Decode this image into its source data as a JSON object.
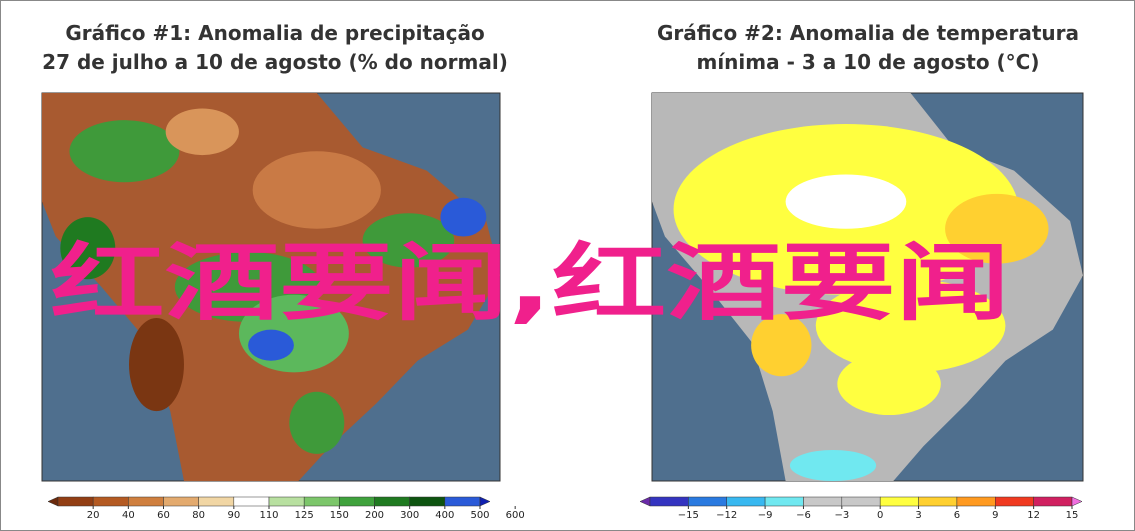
{
  "maps": [
    {
      "title": [
        "Gráfico #1: Anomalia de precipitação",
        "27 de julho a 10 de agosto (% do normal)"
      ],
      "colorbar": {
        "ticks": [
          20,
          40,
          60,
          80,
          90,
          110,
          125,
          150,
          200,
          300,
          400,
          500,
          600
        ],
        "colors": [
          "#6b2a0c",
          "#923e14",
          "#b45a22",
          "#cf7f3e",
          "#e3aa6e",
          "#f1d6a4",
          "#ffffff",
          "#b8e0a0",
          "#7cc66a",
          "#3fa23c",
          "#1f7a20",
          "#0d5410",
          "#2a5ad8",
          "#1020b0"
        ]
      }
    },
    {
      "title": [
        "Gráfico #2: Anomalia de temperatura",
        "mínima - 3 a 10 de agosto (°C)"
      ],
      "colorbar": {
        "ticks": [
          {
            "value": -15,
            "label": "−15"
          },
          {
            "value": -12,
            "label": "−12"
          },
          {
            "value": -9,
            "label": "−9"
          },
          {
            "value": -6,
            "label": "−6"
          },
          {
            "value": -3,
            "label": "−3"
          },
          0,
          3,
          6,
          9,
          12,
          15
        ],
        "colors": [
          "#6a2aa8",
          "#3434c0",
          "#2a7ae0",
          "#38b8f0",
          "#70e8f0",
          "#c8c8c8",
          "#c8c8c8",
          "#ffff40",
          "#ffd030",
          "#ff9a20",
          "#f03a20",
          "#d02060",
          "#f070e0"
        ]
      }
    }
  ],
  "overlay": "红酒要闻,红酒要闻"
}
